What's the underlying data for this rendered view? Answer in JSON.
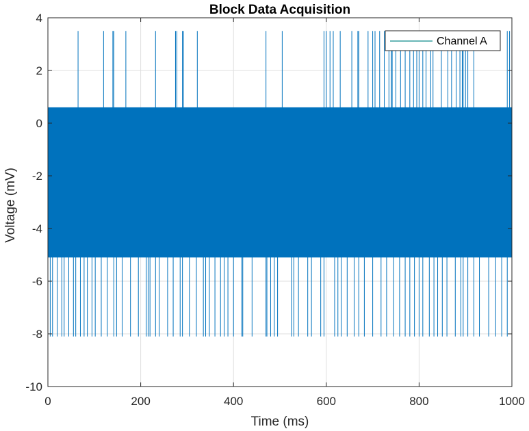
{
  "chart_data": {
    "type": "line",
    "title": "Block Data Acquisition",
    "xlabel": "Time (ms)",
    "ylabel": "Voltage (mV)",
    "xlim": [
      0,
      1000
    ],
    "ylim": [
      -10,
      4
    ],
    "xticks": [
      "0",
      "200",
      "400",
      "600",
      "800",
      "1000"
    ],
    "yticks": [
      "-10",
      "-8",
      "-6",
      "-4",
      "-2",
      "0",
      "2",
      "4"
    ],
    "grid": true,
    "legend_position": "top-right",
    "series": [
      {
        "name": "Channel A",
        "color": "#0072BD",
        "legend_color": "#0E8A8A",
        "band": [
          -5.1,
          0.6
        ],
        "max_spike": 3.5,
        "min_spike": -8.1,
        "upper_spikes_x": [
          65,
          120,
          140,
          142,
          168,
          232,
          275,
          278,
          290,
          292,
          322,
          470,
          505,
          595,
          600,
          608,
          615,
          630,
          655,
          668,
          670,
          690,
          700,
          705,
          715,
          725,
          735,
          740,
          742,
          750,
          760,
          770,
          780,
          788,
          795,
          800,
          808,
          815,
          825,
          830,
          848,
          862,
          870,
          880,
          888,
          893,
          895,
          900,
          905,
          918,
          990,
          995
        ],
        "lower_spikes_x": [
          5,
          10,
          20,
          30,
          35,
          45,
          55,
          60,
          70,
          78,
          85,
          95,
          102,
          115,
          128,
          142,
          148,
          160,
          178,
          195,
          212,
          216,
          220,
          232,
          240,
          258,
          270,
          285,
          290,
          305,
          320,
          335,
          340,
          348,
          360,
          372,
          380,
          388,
          400,
          418,
          420,
          440,
          470,
          472,
          480,
          488,
          495,
          525,
          530,
          540,
          560,
          568,
          588,
          595,
          618,
          625,
          632,
          645,
          660,
          670,
          682,
          700,
          718,
          730,
          745,
          758,
          770,
          780,
          790,
          800,
          808,
          822,
          832,
          840,
          850,
          860,
          878,
          890,
          895,
          905,
          918,
          930,
          950,
          965,
          978,
          990
        ]
      }
    ]
  }
}
